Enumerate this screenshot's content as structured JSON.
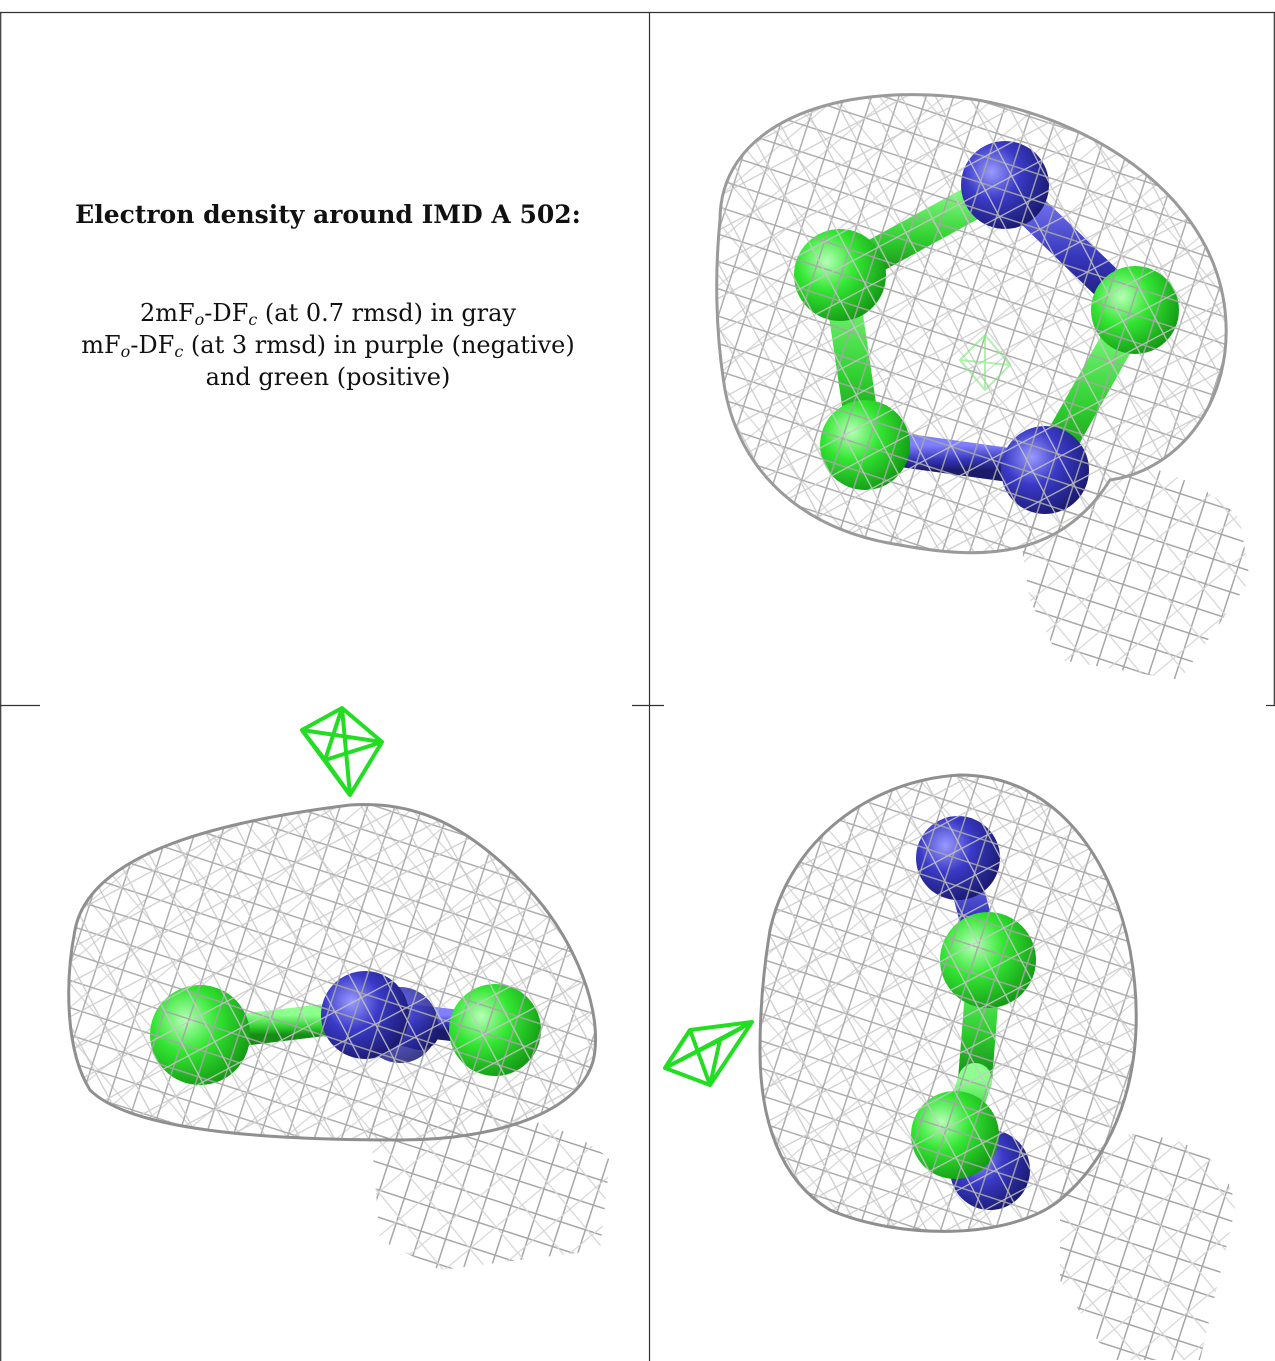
{
  "caption": {
    "title": "Electron density around IMD A 502:",
    "line1": {
      "pre": "2mF",
      "sub1": "o",
      "mid": "-DF",
      "sub2": "c",
      "post": " (at 0.7 rmsd) in gray"
    },
    "line2": {
      "pre": "mF",
      "sub1": "o",
      "mid": "-DF",
      "sub2": "c",
      "post": " (at 3 rmsd) in purple (negative)"
    },
    "line3": "and green (positive)"
  },
  "colors": {
    "mesh_gray": "#b9b9b9",
    "mesh_dark": "#8a8a8a",
    "carbon_green": "#33e633",
    "nitrogen_blue": "#3a3ac8",
    "density_green": "#22dd22",
    "frame_line": "#333333"
  }
}
